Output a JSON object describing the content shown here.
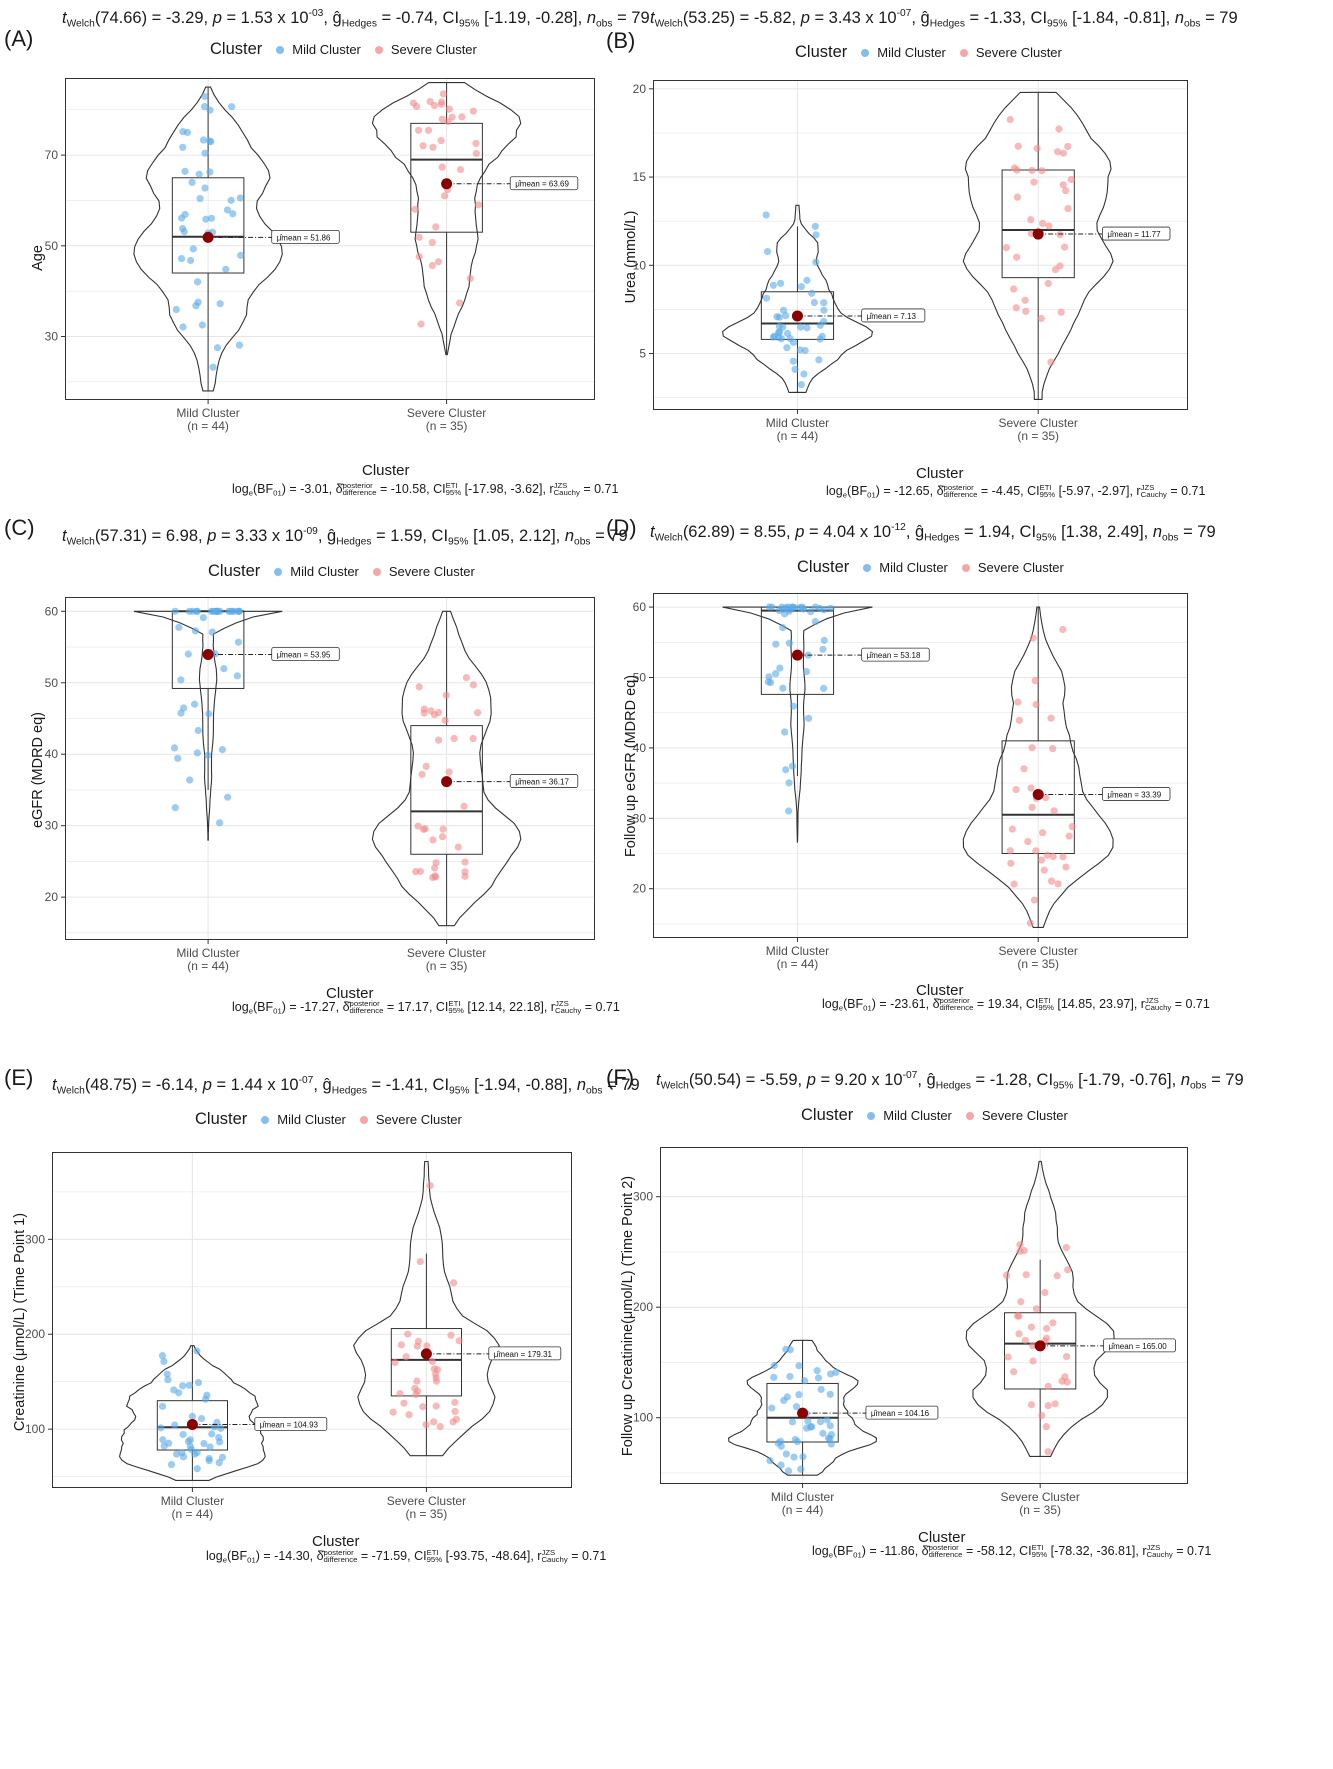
{
  "legend": {
    "title": "Cluster",
    "entries": [
      {
        "label": "Mild Cluster",
        "color": "#5aaae8"
      },
      {
        "label": "Severe Cluster",
        "color": "#f28a8a"
      }
    ]
  },
  "colors": {
    "mild_point": "#5aaae8",
    "severe_point": "#f28a8a",
    "mean_point": "#8b0000",
    "panel_border": "#333333",
    "grid": "#e6e6e6"
  },
  "chart_data": [
    {
      "type": "violin-box",
      "panel_label": "(A)",
      "subtitle": {
        "t_text": "t",
        "t_sub": "Welch",
        "t_rest": "(74.66) = -3.29, ",
        "p_text": "p",
        "p_rest": " = 1.53 x 10",
        "p_exp": "-03",
        "g_text": ", ĝ",
        "g_sub": "Hedges",
        "g_rest": " = -0.74, CI",
        "ci_sub": "95%",
        "ci_rest": " [-1.19, -0.28], ",
        "n_text": "n",
        "n_sub": "obs",
        "n_rest": " = 79"
      },
      "xlabel": "Cluster",
      "ylabel": "Age",
      "ylim": [
        16,
        87
      ],
      "yticks": [
        30,
        50,
        70
      ],
      "categories": [
        {
          "name": "Mild Cluster",
          "n_label": "(n = 44)",
          "min": 18,
          "q1": 44,
          "median": 52,
          "q3": 65,
          "max": 85,
          "violin_min": 18,
          "violin_max": 85,
          "mean": 51.86,
          "mean_label": "μ̂mean = 51.86"
        },
        {
          "name": "Severe Cluster",
          "n_label": "(n = 35)",
          "min": 26,
          "q1": 53,
          "median": 69,
          "q3": 77,
          "max": 86,
          "violin_min": 26,
          "violin_max": 86,
          "mean": 63.69,
          "mean_label": "μ̂mean = 63.69"
        }
      ],
      "caption": {
        "a": "log",
        "a_sub": "e",
        "b": "(BF",
        "b_sub": "01",
        "c": ") = -3.01, δ̂",
        "d_sup": "posterior",
        "d_sub": "difference",
        "e": " = -10.58, CI",
        "f_sup": "ETI",
        "f_sub": "95%",
        "g": " [-17.98, -3.62], r",
        "h_sup": "JZS",
        "h_sub": "Cauchy",
        "i": " = 0.71"
      }
    },
    {
      "type": "violin-box",
      "panel_label": "(B)",
      "subtitle": {
        "t_text": "t",
        "t_sub": "Welch",
        "t_rest": "(53.25) = -5.82, ",
        "p_text": "p",
        "p_rest": " = 3.43 x 10",
        "p_exp": "-07",
        "g_text": ", ĝ",
        "g_sub": "Hedges",
        "g_rest": " = -1.33, CI",
        "ci_sub": "95%",
        "ci_rest": " [-1.84, -0.81], ",
        "n_text": "n",
        "n_sub": "obs",
        "n_rest": " = 79"
      },
      "xlabel": "Cluster",
      "ylabel": "Urea (mmol/L)",
      "ylim": [
        1.8,
        20.5
      ],
      "yticks": [
        5,
        10,
        15,
        20
      ],
      "categories": [
        {
          "name": "Mild Cluster",
          "n_label": "(n = 44)",
          "min": 2.8,
          "q1": 5.8,
          "median": 6.7,
          "q3": 8.5,
          "max": 12.2,
          "violin_min": 2.8,
          "violin_max": 13.4,
          "mean": 7.13,
          "mean_label": "μ̂mean = 7.13"
        },
        {
          "name": "Severe Cluster",
          "n_label": "(n = 35)",
          "min": 2.4,
          "q1": 9.3,
          "median": 12.0,
          "q3": 15.4,
          "max": 19.8,
          "violin_min": 2.4,
          "violin_max": 19.8,
          "mean": 11.77,
          "mean_label": "μ̂mean = 11.77"
        }
      ],
      "caption": {
        "a": "log",
        "a_sub": "e",
        "b": "(BF",
        "b_sub": "01",
        "c": ") = -12.65, δ̂",
        "d_sup": "posterior",
        "d_sub": "difference",
        "e": " = -4.45, CI",
        "f_sup": "ETI",
        "f_sub": "95%",
        "g": " [-5.97, -2.97], r",
        "h_sup": "JZS",
        "h_sub": "Cauchy",
        "i": " = 0.71"
      }
    },
    {
      "type": "violin-box",
      "panel_label": "(C)",
      "subtitle": {
        "t_text": "t",
        "t_sub": "Welch",
        "t_rest": "(57.31) = 6.98, ",
        "p_text": "p",
        "p_rest": " = 3.33 x 10",
        "p_exp": "-09",
        "g_text": ", ĝ",
        "g_sub": "Hedges",
        "g_rest": " = 1.59, CI",
        "ci_sub": "95%",
        "ci_rest": " [1.05, 2.12], ",
        "n_text": "n",
        "n_sub": "obs",
        "n_rest": " = 79"
      },
      "xlabel": "Cluster",
      "ylabel": "eGFR (MDRD eq)",
      "ylim": [
        14,
        62
      ],
      "yticks": [
        20,
        30,
        40,
        50,
        60
      ],
      "categories": [
        {
          "name": "Mild Cluster",
          "n_label": "(n = 44)",
          "min": 35,
          "q1": 49.2,
          "median": 60,
          "q3": 60,
          "max": 60,
          "violin_min": 28,
          "violin_max": 60,
          "mean": 53.95,
          "mean_label": "μ̂mean = 53.95"
        },
        {
          "name": "Severe Cluster",
          "n_label": "(n = 35)",
          "min": 16,
          "q1": 26,
          "median": 32,
          "q3": 44,
          "max": 60,
          "violin_min": 16,
          "violin_max": 60,
          "mean": 36.17,
          "mean_label": "μ̂mean = 36.17"
        }
      ],
      "caption": {
        "a": "log",
        "a_sub": "e",
        "b": "(BF",
        "b_sub": "01",
        "c": ") = -17.27, δ̂",
        "d_sup": "posterior",
        "d_sub": "difference",
        "e": " = 17.17, CI",
        "f_sup": "ETI",
        "f_sub": "95%",
        "g": " [12.14, 22.18], r",
        "h_sup": "JZS",
        "h_sub": "Cauchy",
        "i": " = 0.71"
      }
    },
    {
      "type": "violin-box",
      "panel_label": "(D)",
      "subtitle": {
        "t_text": "t",
        "t_sub": "Welch",
        "t_rest": "(62.89) = 8.55, ",
        "p_text": "p",
        "p_rest": " = 4.04 x 10",
        "p_exp": "-12",
        "g_text": ", ĝ",
        "g_sub": "Hedges",
        "g_rest": " = 1.94, CI",
        "ci_sub": "95%",
        "ci_rest": " [1.38, 2.49], ",
        "n_text": "n",
        "n_sub": "obs",
        "n_rest": " = 79"
      },
      "xlabel": "Cluster",
      "ylabel": "Follow up eGFR (MDRD eq)",
      "ylim": [
        13,
        62
      ],
      "yticks": [
        20,
        30,
        40,
        50,
        60
      ],
      "categories": [
        {
          "name": "Mild Cluster",
          "n_label": "(n = 44)",
          "min": 36,
          "q1": 47.6,
          "median": 59.5,
          "q3": 60,
          "max": 60,
          "violin_min": 26.6,
          "violin_max": 60,
          "mean": 53.18,
          "mean_label": "μ̂mean = 53.18"
        },
        {
          "name": "Severe Cluster",
          "n_label": "(n = 35)",
          "min": 14.5,
          "q1": 25,
          "median": 30.5,
          "q3": 41,
          "max": 60,
          "violin_min": 14.5,
          "violin_max": 60,
          "mean": 33.39,
          "mean_label": "μ̂mean = 33.39"
        }
      ],
      "caption": {
        "a": "log",
        "a_sub": "e",
        "b": "(BF",
        "b_sub": "01",
        "c": ") = -23.61, δ̂",
        "d_sup": "posterior",
        "d_sub": "difference",
        "e": " = 19.34, CI",
        "f_sup": "ETI",
        "f_sub": "95%",
        "g": " [14.85, 23.97], r",
        "h_sup": "JZS",
        "h_sub": "Cauchy",
        "i": " = 0.71"
      }
    },
    {
      "type": "violin-box",
      "panel_label": "(E)",
      "subtitle": {
        "t_text": "t",
        "t_sub": "Welch",
        "t_rest": "(48.75) = -6.14, ",
        "p_text": "p",
        "p_rest": " = 1.44 x 10",
        "p_exp": "-07",
        "g_text": ", ĝ",
        "g_sub": "Hedges",
        "g_rest": " = -1.41, CI",
        "ci_sub": "95%",
        "ci_rest": " [-1.94, -0.88], ",
        "n_text": "n",
        "n_sub": "obs",
        "n_rest": " = 79"
      },
      "xlabel": "Cluster",
      "ylabel": "Creatinine (μmol/L) (Time Point 1)",
      "ylim": [
        38,
        392
      ],
      "yticks": [
        100,
        200,
        300
      ],
      "categories": [
        {
          "name": "Mild Cluster",
          "n_label": "(n = 44)",
          "min": 46,
          "q1": 78,
          "median": 102,
          "q3": 130,
          "max": 188,
          "violin_min": 46,
          "violin_max": 188,
          "mean": 104.93,
          "mean_label": "μ̂mean = 104.93"
        },
        {
          "name": "Severe Cluster",
          "n_label": "(n = 35)",
          "min": 72,
          "q1": 135,
          "median": 173,
          "q3": 206,
          "max": 285,
          "violin_min": 72,
          "violin_max": 382,
          "mean": 179.31,
          "mean_label": "μ̂mean = 179.31"
        }
      ],
      "caption": {
        "a": "log",
        "a_sub": "e",
        "b": "(BF",
        "b_sub": "01",
        "c": ") = -14.30, δ̂",
        "d_sup": "posterior",
        "d_sub": "difference",
        "e": " = -71.59, CI",
        "f_sup": "ETI",
        "f_sub": "95%",
        "g": " [-93.75, -48.64], r",
        "h_sup": "JZS",
        "h_sub": "Cauchy",
        "i": " = 0.71"
      }
    },
    {
      "type": "violin-box",
      "panel_label": "(F)",
      "subtitle": {
        "t_text": "t",
        "t_sub": "Welch",
        "t_rest": "(50.54) = -5.59, ",
        "p_text": "p",
        "p_rest": " = 9.20 x 10",
        "p_exp": "-07",
        "g_text": ", ĝ",
        "g_sub": "Hedges",
        "g_rest": " = -1.28, CI",
        "ci_sub": "95%",
        "ci_rest": " [-1.79, -0.76], ",
        "n_text": "n",
        "n_sub": "obs",
        "n_rest": " = 79"
      },
      "xlabel": "Cluster",
      "ylabel": "Follow up Creatinine(μmol/L) (Time Point 2)",
      "ylim": [
        40,
        345
      ],
      "yticks": [
        100,
        200,
        300
      ],
      "categories": [
        {
          "name": "Mild Cluster",
          "n_label": "(n = 44)",
          "min": 48,
          "q1": 78,
          "median": 100,
          "q3": 131,
          "max": 170,
          "violin_min": 48,
          "violin_max": 170,
          "mean": 104.16,
          "mean_label": "μ̂mean = 104.16"
        },
        {
          "name": "Severe Cluster",
          "n_label": "(n = 35)",
          "min": 65,
          "q1": 126,
          "median": 167,
          "q3": 195,
          "max": 243,
          "violin_min": 65,
          "violin_max": 332,
          "mean": 165.0,
          "mean_label": "μ̂mean = 165.00"
        }
      ],
      "caption": {
        "a": "log",
        "a_sub": "e",
        "b": "(BF",
        "b_sub": "01",
        "c": ") = -11.86, δ̂",
        "d_sup": "posterior",
        "d_sub": "difference",
        "e": " = -58.12, CI",
        "f_sup": "ETI",
        "f_sub": "95%",
        "g": " [-78.32, -36.81], r",
        "h_sup": "JZS",
        "h_sub": "Cauchy",
        "i": " = 0.71"
      }
    }
  ]
}
